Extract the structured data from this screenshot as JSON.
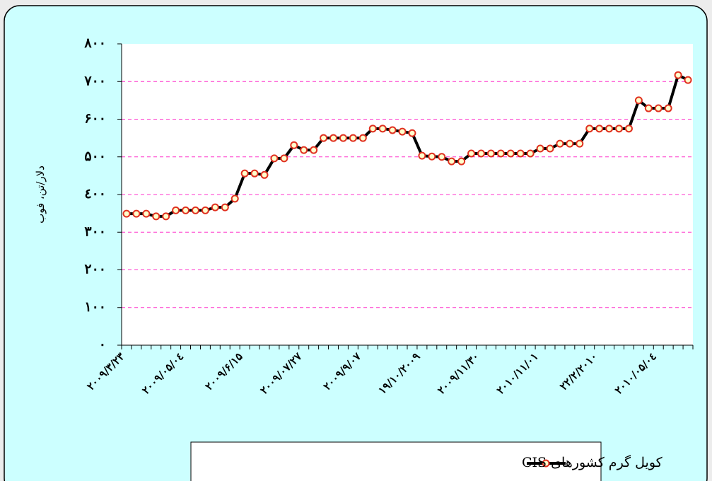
{
  "chart_data": {
    "type": "line",
    "y_axis_label": "دلار/تن، فوب",
    "categories": [
      "۲۰۰۹/۳/۲۳",
      null,
      null,
      null,
      null,
      null,
      "۲۰۰۹/۰۵/۰٤",
      null,
      null,
      null,
      null,
      null,
      "۲۰۰۹/۶/۱۵",
      null,
      null,
      null,
      null,
      null,
      "۲۰۰۹/۰۷/۲۷",
      null,
      null,
      null,
      null,
      null,
      "۲۰۰۹/۹/۰۷",
      null,
      null,
      null,
      null,
      null,
      "۱۹/۱۰/۲۰۰۹",
      null,
      null,
      null,
      null,
      null,
      "۲۰۰۹/۱۱/۳۰",
      null,
      null,
      null,
      null,
      null,
      "۲۰۱۰/۱۱/۰۱",
      null,
      null,
      null,
      null,
      null,
      "۲۲/۲/۲۰۱۰",
      null,
      null,
      null,
      null,
      null,
      "۲۰۱۰/۰۵/۰٤",
      null,
      null,
      null
    ],
    "series": [
      {
        "name": "کویل گرم کشورهای CIS",
        "color": "#000000",
        "marker_color": "#e03020",
        "values": [
          349,
          349,
          349,
          342,
          342,
          358,
          358,
          358,
          358,
          366,
          366,
          389,
          456,
          456,
          452,
          496,
          496,
          531,
          518,
          518,
          550,
          550,
          550,
          550,
          550,
          575,
          575,
          571,
          567,
          563,
          503,
          501,
          500,
          488,
          488,
          509,
          509,
          509,
          509,
          509,
          509,
          509,
          522,
          522,
          535,
          535,
          535,
          575,
          575,
          575,
          575,
          575,
          650,
          629,
          629,
          629,
          717,
          704
        ]
      }
    ],
    "ylim": [
      0,
      800
    ],
    "yticks": [
      {
        "value": 0,
        "label": "۰"
      },
      {
        "value": 100,
        "label": "۱۰۰"
      },
      {
        "value": 200,
        "label": "۲۰۰"
      },
      {
        "value": 300,
        "label": "۳۰۰"
      },
      {
        "value": 400,
        "label": "٤۰۰"
      },
      {
        "value": 500,
        "label": "۵۰۰"
      },
      {
        "value": 600,
        "label": "۶۰۰"
      },
      {
        "value": 700,
        "label": "۷۰۰"
      },
      {
        "value": 800,
        "label": "۸۰۰"
      }
    ],
    "grid": true,
    "grid_color": "#ff33cc",
    "legend": "bottom"
  }
}
